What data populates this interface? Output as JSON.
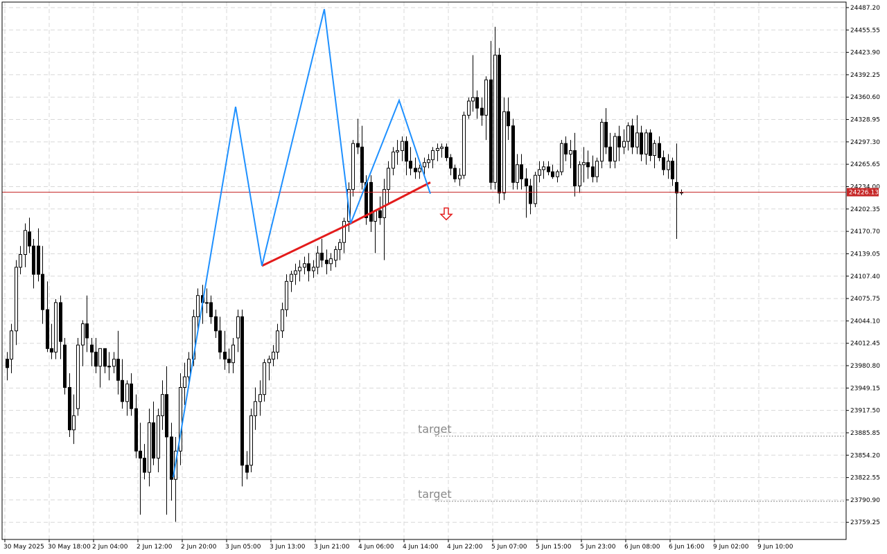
{
  "chart_data": {
    "type": "candlestick",
    "title": "",
    "xlabel": "",
    "ylabel": "",
    "ylim": [
      23735,
      24495
    ],
    "y_ticks": [
      "24487.20",
      "24455.55",
      "24423.90",
      "24392.25",
      "24360.60",
      "24328.95",
      "24297.30",
      "24265.65",
      "24234.00",
      "24202.35",
      "24170.70",
      "24139.05",
      "24107.40",
      "24075.75",
      "24044.10",
      "24012.45",
      "23980.80",
      "23949.15",
      "23917.50",
      "23885.85",
      "23854.20",
      "23822.55",
      "23790.90",
      "23759.25"
    ],
    "x_ticks": [
      "30 May 2025",
      "30 May 18:00",
      "2 Jun 04:00",
      "2 Jun 12:00",
      "2 Jun 20:00",
      "3 Jun 05:00",
      "3 Jun 13:00",
      "3 Jun 21:00",
      "4 Jun 06:00",
      "4 Jun 14:00",
      "4 Jun 22:00",
      "5 Jun 07:00",
      "5 Jun 15:00",
      "5 Jun 23:00",
      "6 Jun 08:00",
      "6 Jun 16:00",
      "9 Jun 02:00",
      "9 Jun 10:00"
    ],
    "grid": true,
    "colors": {
      "bull": "#ffffff",
      "bear": "#000000",
      "wick": "#000000",
      "zigzag": "#1e90ff",
      "neckline": "#e31b1b",
      "current_price": "#c62828",
      "arrow": "#e31b1b",
      "target": "#888888",
      "grid": "#d8d8d8"
    },
    "current_price": "24226.13",
    "candles": [
      [
        23990,
        24000,
        23960,
        23978
      ],
      [
        23990,
        24040,
        23970,
        24030
      ],
      [
        24030,
        24130,
        24010,
        24120
      ],
      [
        24120,
        24150,
        24110,
        24138
      ],
      [
        24138,
        24182,
        24120,
        24172
      ],
      [
        24170,
        24190,
        24140,
        24150
      ],
      [
        24150,
        24160,
        24090,
        24110
      ],
      [
        24150,
        24175,
        24100,
        24110
      ],
      [
        24110,
        24150,
        24040,
        24060
      ],
      [
        24060,
        24100,
        24000,
        24005
      ],
      [
        24005,
        24040,
        23990,
        24000
      ],
      [
        24000,
        24075,
        23990,
        24070
      ],
      [
        24070,
        24080,
        23990,
        24015
      ],
      [
        24010,
        24020,
        23940,
        23950
      ],
      [
        23950,
        23970,
        23880,
        23890
      ],
      [
        23890,
        23940,
        23870,
        23910
      ],
      [
        23920,
        24020,
        23910,
        24010
      ],
      [
        24010,
        24045,
        23980,
        24040
      ],
      [
        24040,
        24080,
        24000,
        24020
      ],
      [
        24010,
        24020,
        23980,
        24000
      ],
      [
        24000,
        24020,
        23970,
        23980
      ],
      [
        23980,
        24005,
        23950,
        24005
      ],
      [
        24005,
        24005,
        23970,
        23980
      ],
      [
        23980,
        24000,
        23960,
        23980
      ],
      [
        23980,
        24000,
        23970,
        23990
      ],
      [
        23990,
        24030,
        23940,
        23960
      ],
      [
        23960,
        23990,
        23920,
        23930
      ],
      [
        23930,
        23960,
        23910,
        23955
      ],
      [
        23955,
        23970,
        23910,
        23920
      ],
      [
        23920,
        23940,
        23850,
        23860
      ],
      [
        23860,
        23900,
        23770,
        23850
      ],
      [
        23850,
        23870,
        23820,
        23830
      ],
      [
        23830,
        23920,
        23810,
        23900
      ],
      [
        23900,
        23930,
        23840,
        23850
      ],
      [
        23850,
        23920,
        23830,
        23910
      ],
      [
        23910,
        23960,
        23890,
        23940
      ],
      [
        23940,
        23980,
        23770,
        23880
      ],
      [
        23880,
        23900,
        23790,
        23820
      ],
      [
        23820,
        23880,
        23760,
        23860
      ],
      [
        23860,
        23970,
        23840,
        23950
      ],
      [
        23950,
        23985,
        23925,
        23965
      ],
      [
        23965,
        24000,
        23950,
        23990
      ],
      [
        23990,
        24060,
        23980,
        24050
      ],
      [
        24050,
        24090,
        24030,
        24080
      ],
      [
        24080,
        24095,
        24040,
        24070
      ],
      [
        24070,
        24090,
        24055,
        24070
      ],
      [
        24070,
        24080,
        24040,
        24050
      ],
      [
        24050,
        24060,
        24020,
        24030
      ],
      [
        24030,
        24050,
        23990,
        24000
      ],
      [
        24000,
        24030,
        23975,
        23990
      ],
      [
        23990,
        24005,
        23970,
        23985
      ],
      [
        23985,
        24020,
        23970,
        24010
      ],
      [
        24020,
        24060,
        24000,
        24050
      ],
      [
        24050,
        24060,
        23810,
        23840
      ],
      [
        23840,
        23860,
        23820,
        23830
      ],
      [
        23840,
        23920,
        23830,
        23910
      ],
      [
        23910,
        23950,
        23890,
        23930
      ],
      [
        23930,
        23960,
        23910,
        23940
      ],
      [
        23940,
        23990,
        23930,
        23985
      ],
      [
        23985,
        23995,
        23960,
        23990
      ],
      [
        23990,
        24010,
        23980,
        24000
      ],
      [
        24000,
        24040,
        23990,
        24030
      ],
      [
        24030,
        24070,
        24020,
        24060
      ],
      [
        24060,
        24110,
        24050,
        24100
      ],
      [
        24100,
        24115,
        24085,
        24110
      ],
      [
        24110,
        24125,
        24095,
        24115
      ],
      [
        24115,
        24130,
        24100,
        24120
      ],
      [
        24120,
        24135,
        24110,
        24125
      ],
      [
        24125,
        24140,
        24100,
        24115
      ],
      [
        24115,
        24130,
        24105,
        24120
      ],
      [
        24120,
        24150,
        24110,
        24140
      ],
      [
        24140,
        24160,
        24120,
        24130
      ],
      [
        24130,
        24145,
        24110,
        24125
      ],
      [
        24125,
        24140,
        24115,
        24132
      ],
      [
        24130,
        24150,
        24120,
        24145
      ],
      [
        24145,
        24160,
        24130,
        24155
      ],
      [
        24155,
        24190,
        24140,
        24185
      ],
      [
        24185,
        24240,
        24170,
        24230
      ],
      [
        24230,
        24300,
        24220,
        24295
      ],
      [
        24295,
        24330,
        24280,
        24290
      ],
      [
        24290,
        24320,
        24230,
        24240
      ],
      [
        24240,
        24250,
        24180,
        24190
      ],
      [
        24240,
        24250,
        24170,
        24185
      ],
      [
        24185,
        24200,
        24140,
        24200
      ],
      [
        24200,
        24220,
        24180,
        24190
      ],
      [
        24190,
        24245,
        24130,
        24230
      ],
      [
        24230,
        24270,
        24210,
        24260
      ],
      [
        24260,
        24290,
        24250,
        24283
      ],
      [
        24283,
        24300,
        24265,
        24285
      ],
      [
        24285,
        24305,
        24270,
        24298
      ],
      [
        24298,
        24305,
        24250,
        24270
      ],
      [
        24270,
        24290,
        24250,
        24260
      ],
      [
        24260,
        24275,
        24245,
        24255
      ],
      [
        24255,
        24265,
        24245,
        24260
      ],
      [
        24262,
        24275,
        24250,
        24268
      ],
      [
        24268,
        24280,
        24260,
        24272
      ],
      [
        24272,
        24290,
        24260,
        24285
      ],
      [
        24285,
        24295,
        24270,
        24288
      ],
      [
        24288,
        24295,
        24275,
        24290
      ],
      [
        24290,
        24295,
        24270,
        24275
      ],
      [
        24275,
        24280,
        24250,
        24260
      ],
      [
        24260,
        24265,
        24240,
        24245
      ],
      [
        24245,
        24260,
        24235,
        24250
      ],
      [
        24250,
        24340,
        24245,
        24335
      ],
      [
        24335,
        24360,
        24330,
        24355
      ],
      [
        24355,
        24420,
        24340,
        24360
      ],
      [
        24360,
        24370,
        24330,
        24345
      ],
      [
        24345,
        24360,
        24320,
        24335
      ],
      [
        24335,
        24390,
        24300,
        24385
      ],
      [
        24385,
        24440,
        24230,
        24240
      ],
      [
        24240,
        24460,
        24230,
        24420
      ],
      [
        24420,
        24430,
        24210,
        24225
      ],
      [
        24225,
        24360,
        24215,
        24340
      ],
      [
        24340,
        24360,
        24300,
        24320
      ],
      [
        24320,
        24330,
        24230,
        24240
      ],
      [
        24240,
        24280,
        24230,
        24265
      ],
      [
        24265,
        24280,
        24230,
        24245
      ],
      [
        24245,
        24260,
        24190,
        24235
      ],
      [
        24235,
        24245,
        24195,
        24210
      ],
      [
        24210,
        24255,
        24205,
        24250
      ],
      [
        24250,
        24270,
        24240,
        24258
      ],
      [
        24258,
        24270,
        24245,
        24262
      ],
      [
        24262,
        24270,
        24250,
        24255
      ],
      [
        24255,
        24265,
        24245,
        24248
      ],
      [
        24248,
        24258,
        24240,
        24255
      ],
      [
        24255,
        24300,
        24250,
        24295
      ],
      [
        24295,
        24305,
        24270,
        24280
      ],
      [
        24280,
        24300,
        24260,
        24285
      ],
      [
        24285,
        24310,
        24220,
        24235
      ],
      [
        24235,
        24270,
        24225,
        24265
      ],
      [
        24265,
        24290,
        24240,
        24268
      ],
      [
        24268,
        24285,
        24245,
        24262
      ],
      [
        24262,
        24278,
        24240,
        24248
      ],
      [
        24248,
        24275,
        24240,
        24270
      ],
      [
        24270,
        24330,
        24260,
        24325
      ],
      [
        24325,
        24345,
        24280,
        24290
      ],
      [
        24290,
        24310,
        24260,
        24270
      ],
      [
        24270,
        24310,
        24260,
        24305
      ],
      [
        24305,
        24320,
        24270,
        24290
      ],
      [
        24290,
        24315,
        24280,
        24298
      ],
      [
        24298,
        24325,
        24285,
        24320
      ],
      [
        24320,
        24330,
        24280,
        24290
      ],
      [
        24290,
        24335,
        24280,
        24310
      ],
      [
        24310,
        24320,
        24270,
        24280
      ],
      [
        24280,
        24315,
        24265,
        24310
      ],
      [
        24310,
        24315,
        24270,
        24278
      ],
      [
        24278,
        24300,
        24260,
        24295
      ],
      [
        24295,
        24305,
        24270,
        24275
      ],
      [
        24275,
        24285,
        24250,
        24258
      ],
      [
        24258,
        24280,
        24245,
        24270
      ],
      [
        24270,
        24275,
        24235,
        24245
      ],
      [
        24240,
        24295,
        24160,
        24225
      ],
      [
        24225,
        24230,
        24222,
        24226
      ]
    ],
    "zigzag_points": [
      [
        37.5,
        23823
      ],
      [
        51.5,
        24347
      ],
      [
        57.5,
        24122
      ],
      [
        71.5,
        24485
      ],
      [
        77.5,
        24182
      ],
      [
        88.5,
        24356
      ],
      [
        95.5,
        24224
      ]
    ],
    "neckline": [
      [
        57.5,
        24122
      ],
      [
        77.5,
        24182
      ],
      [
        95.5,
        24240
      ]
    ],
    "arrow": {
      "direction": "down",
      "bar": 99,
      "price": 24195
    },
    "targets": [
      {
        "label": "target",
        "price": 23881,
        "bar_start": 96.5
      },
      {
        "label": "target",
        "price": 23789,
        "bar_start": 96.5
      }
    ]
  }
}
